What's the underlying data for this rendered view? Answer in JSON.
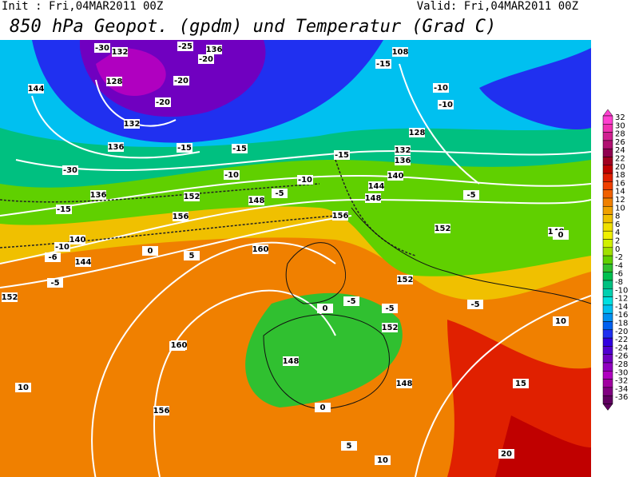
{
  "header": {
    "init": "Init : Fri,04MAR2011 00Z",
    "valid": "Valid: Fri,04MAR2011 00Z",
    "title": "850 hPa Geopot. (gpdm) und Temperatur (Grad C)"
  },
  "colorbar": {
    "labels": [
      32,
      30,
      28,
      26,
      24,
      22,
      20,
      18,
      16,
      14,
      12,
      10,
      8,
      6,
      4,
      2,
      0,
      -2,
      -4,
      -6,
      -8,
      -10,
      -12,
      -14,
      -16,
      -18,
      -20,
      -22,
      -24,
      -26,
      -28,
      -30,
      -32,
      -34,
      -36
    ],
    "colors": [
      "#ff40d0",
      "#f030b0",
      "#d02090",
      "#b01070",
      "#900050",
      "#a00020",
      "#c00000",
      "#e02000",
      "#f04000",
      "#f06000",
      "#f08000",
      "#f0a000",
      "#f0c000",
      "#f0e000",
      "#f0f000",
      "#d0f000",
      "#a0e000",
      "#60d000",
      "#30c030",
      "#00c050",
      "#00c080",
      "#00d0b0",
      "#00e0e0",
      "#00c0f0",
      "#0090f0",
      "#0060f0",
      "#2030f0",
      "#3000e0",
      "#5000d0",
      "#7000c0",
      "#9000c0",
      "#b000c0",
      "#a000a0",
      "#800080",
      "#600060"
    ]
  },
  "map": {
    "labels": [
      "132",
      "128",
      "-30",
      "-20",
      "136",
      "144",
      "-25",
      "-20",
      "132",
      "136",
      "-15",
      "-20",
      "-30",
      "136",
      "140",
      "-15",
      "-10",
      "-6",
      "144",
      "148",
      "152",
      "-5",
      "0",
      "-5",
      "152",
      "156",
      "160",
      "0",
      "5",
      "160",
      "156",
      "10",
      "5",
      "10",
      "148",
      "0",
      "0",
      "148",
      "152",
      "-5",
      "156",
      "-5",
      "152",
      "-10",
      "-15",
      "140",
      "136",
      "132",
      "128",
      "-10",
      "-15",
      "144",
      "148",
      "148",
      "152",
      "-5",
      "10",
      "15",
      "20",
      "0",
      "-5",
      "108",
      "-15",
      "-10",
      "-10"
    ]
  }
}
